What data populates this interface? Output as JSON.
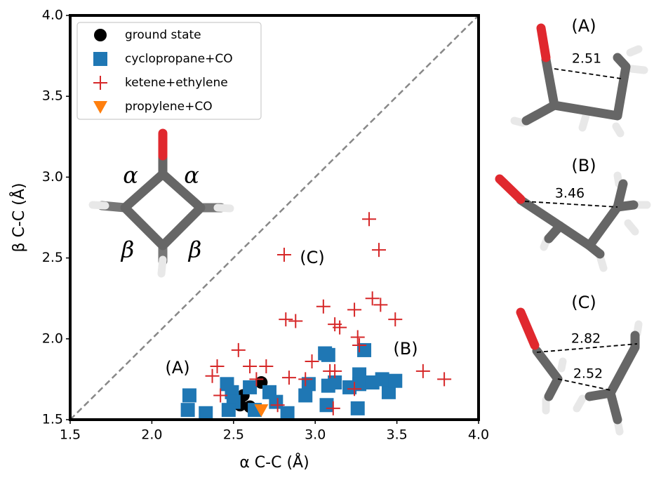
{
  "chart_data": {
    "type": "scatter",
    "xlabel": "α C-C (Å)",
    "ylabel": "β C-C (Å)",
    "xlim": [
      1.5,
      4.0
    ],
    "ylim": [
      1.5,
      4.0
    ],
    "xticks": [
      1.5,
      {
        "value": 2,
        "label": "2.0"
      },
      2.5,
      {
        "value": 3,
        "label": "3.0"
      },
      3.5,
      {
        "value": 4,
        "label": "4.0"
      }
    ],
    "yticks": [
      1.5,
      {
        "value": 2,
        "label": "2.0"
      },
      2.5,
      {
        "value": 3,
        "label": "3.0"
      },
      3.5,
      {
        "value": 4,
        "label": "4.0"
      }
    ],
    "legend": "upper left",
    "series": [
      {
        "name": "ground state",
        "color": "#000000",
        "marker": "circle",
        "x": [
          2.54,
          2.56,
          2.6,
          2.67
        ],
        "values": [
          1.59,
          1.65,
          1.58,
          1.73
        ]
      },
      {
        "name": "cyclopropane+CO",
        "color": "#1f77b4",
        "marker": "square",
        "x": [
          2.23,
          2.22,
          2.33,
          2.46,
          2.49,
          2.5,
          2.47,
          2.6,
          2.63,
          2.72,
          2.76,
          2.83,
          2.96,
          2.94,
          3.06,
          3.08,
          3.08,
          3.07,
          3.12,
          3.21,
          3.27,
          3.27,
          3.26,
          3.3,
          3.35,
          3.45,
          3.41,
          3.49
        ],
        "values": [
          1.65,
          1.56,
          1.54,
          1.72,
          1.67,
          1.61,
          1.56,
          1.7,
          1.56,
          1.67,
          1.61,
          1.54,
          1.72,
          1.65,
          1.91,
          1.9,
          1.71,
          1.59,
          1.73,
          1.7,
          1.78,
          1.72,
          1.57,
          1.93,
          1.73,
          1.67,
          1.75,
          1.74
        ]
      },
      {
        "name": "ketene+ethylene",
        "color": "#d62728",
        "marker": "plus",
        "x": [
          3.33,
          3.39,
          2.81,
          3.05,
          3.35,
          3.4,
          3.24,
          2.82,
          3.12,
          3.15,
          3.49,
          2.88,
          3.26,
          3.27,
          2.53,
          2.98,
          3.66,
          3.79,
          2.4,
          2.37,
          2.7,
          2.84,
          2.94,
          3.09,
          3.12,
          3.24,
          2.42,
          2.77,
          3.11,
          2.6,
          2.64
        ],
        "values": [
          2.74,
          2.55,
          2.52,
          2.2,
          2.25,
          2.21,
          2.18,
          2.12,
          2.09,
          2.07,
          2.12,
          2.11,
          2.01,
          1.96,
          1.93,
          1.86,
          1.8,
          1.75,
          1.83,
          1.77,
          1.83,
          1.76,
          1.75,
          1.8,
          1.8,
          1.69,
          1.65,
          1.59,
          1.57,
          1.83,
          1.75
        ]
      },
      {
        "name": "propylene+CO",
        "color": "#ff7f0e",
        "marker": "triangle",
        "x": [
          2.67
        ],
        "values": [
          1.56
        ]
      }
    ],
    "annotations": [
      "(A)",
      "(B)",
      "(C)"
    ]
  },
  "inset": {
    "labels": [
      "α",
      "α",
      "β",
      "β"
    ]
  },
  "structures": [
    {
      "label": "(A)",
      "distances": [
        2.51
      ]
    },
    {
      "label": "(B)",
      "distances": [
        3.46
      ]
    },
    {
      "label": "(C)",
      "distances": [
        2.82,
        2.52
      ]
    }
  ]
}
